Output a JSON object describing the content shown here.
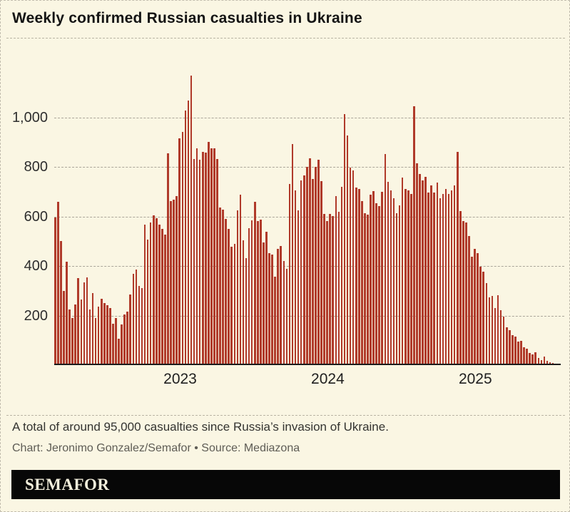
{
  "title": "Weekly confirmed Russian casualties in Ukraine",
  "caption": "A total of around 95,000 casualties since Russia’s invasion of Ukraine.",
  "credit": "Chart: Jeronimo Gonzalez/Semafor • Source: Mediazona",
  "logo": "SEMAFOR",
  "colors": {
    "background": "#FAF6E3",
    "bar": "#B03A2A",
    "axis_line": "#1c1c1c",
    "gridline": "#aaa599",
    "caption_text": "#333330",
    "credit_text": "#5e5c55",
    "logo_bg": "#070707",
    "logo_text": "#F3EFDC"
  },
  "chart_data": {
    "type": "bar",
    "title": "Weekly confirmed Russian casualties in Ukraine",
    "unit": "confirmed casualties per week",
    "x_start": "2022-03",
    "x_end": "2025-07",
    "grid": "dashed-horizontal",
    "legend": "none",
    "x_axis": {
      "ticks": [
        {
          "label": "2023",
          "week_index": 43
        },
        {
          "label": "2024",
          "week_index": 94
        },
        {
          "label": "2025",
          "week_index": 145
        }
      ]
    },
    "y_axis": {
      "max": 1200,
      "ticks": [
        {
          "label": "200",
          "value": 200
        },
        {
          "label": "400",
          "value": 400
        },
        {
          "label": "600",
          "value": 600
        },
        {
          "label": "800",
          "value": 800
        },
        {
          "label": "1,000",
          "value": 1000
        }
      ]
    },
    "values": [
      595,
      660,
      500,
      300,
      418,
      225,
      190,
      245,
      350,
      265,
      335,
      355,
      225,
      290,
      190,
      235,
      267,
      250,
      243,
      231,
      168,
      190,
      108,
      163,
      204,
      216,
      286,
      369,
      385,
      321,
      312,
      568,
      508,
      577,
      604,
      593,
      566,
      549,
      528,
      854,
      662,
      669,
      681,
      915,
      942,
      1028,
      1068,
      1168,
      832,
      875,
      829,
      860,
      858,
      902,
      875,
      875,
      833,
      635,
      627,
      590,
      550,
      479,
      490,
      625,
      688,
      505,
      433,
      553,
      583,
      660,
      581,
      588,
      495,
      538,
      452,
      447,
      357,
      470,
      480,
      420,
      390,
      731,
      892,
      706,
      624,
      745,
      765,
      800,
      836,
      752,
      801,
      828,
      744,
      609,
      580,
      611,
      601,
      683,
      618,
      719,
      1012,
      928,
      798,
      786,
      717,
      712,
      662,
      612,
      606,
      689,
      702,
      654,
      641,
      700,
      852,
      740,
      705,
      673,
      614,
      645,
      756,
      712,
      705,
      691,
      1046,
      815,
      772,
      746,
      760,
      697,
      724,
      697,
      737,
      673,
      691,
      710,
      692,
      705,
      726,
      860,
      623,
      580,
      575,
      520,
      437,
      468,
      451,
      398,
      376,
      331,
      273,
      280,
      229,
      283,
      221,
      197,
      154,
      142,
      120,
      115,
      96,
      98,
      72,
      65,
      48,
      43,
      53,
      29,
      21,
      36,
      16,
      12,
      8,
      5,
      4
    ]
  }
}
